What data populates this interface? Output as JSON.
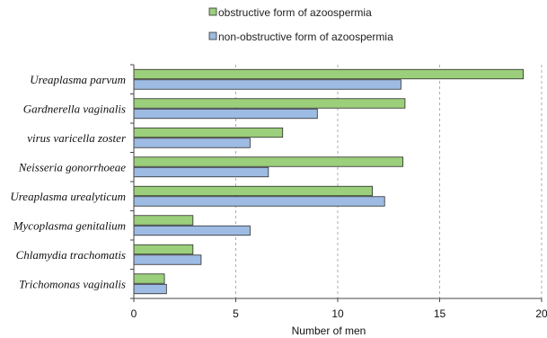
{
  "chart_data": {
    "type": "bar",
    "orientation": "horizontal",
    "categories": [
      "Ureaplasma parvum",
      "Gardnerella vaginalis",
      "virus varicella zoster",
      "Neisseria gonorrhoeae",
      "Ureaplasma urealyticum",
      "Mycoplasma genitalium",
      "Chlamydia trachomatis",
      "Trichomonas vaginalis"
    ],
    "series": [
      {
        "name": "obstructive form of azoospermia",
        "color": "#9bcf7b",
        "values": [
          19.1,
          13.3,
          7.3,
          13.2,
          11.7,
          2.9,
          2.9,
          1.5
        ]
      },
      {
        "name": "non-obstructive form of azoospermia",
        "color": "#9dbbe3",
        "values": [
          13.1,
          9.0,
          5.7,
          6.6,
          12.3,
          5.7,
          3.3,
          1.6
        ]
      }
    ],
    "xlabel": "Number of men",
    "ylabel": "",
    "xlim": [
      0,
      20
    ],
    "xticks": [
      0,
      5,
      10,
      15,
      20
    ],
    "grid": "vertical dashed",
    "legend_position": "top"
  }
}
